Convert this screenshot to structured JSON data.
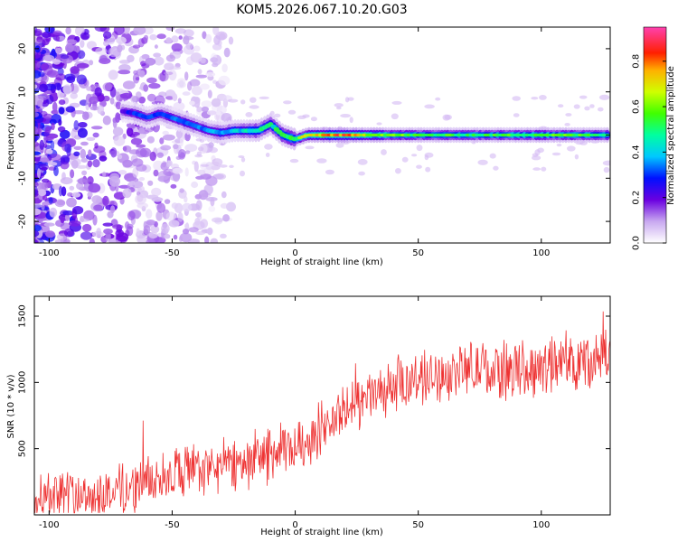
{
  "title": "KOM5.2026.067.10.20.G03",
  "chart_data": [
    {
      "type": "heatmap",
      "xlabel": "Height of straight line (km)",
      "ylabel": "Frequency (Hz)",
      "xlim": [
        -106,
        128
      ],
      "ylim": [
        -25,
        25
      ],
      "xticks": [
        -100,
        -50,
        0,
        50,
        100
      ],
      "xtick_labels": [
        "-100",
        "-50",
        "0",
        "50",
        "100"
      ],
      "yticks": [
        -20,
        -10,
        0,
        10,
        20
      ],
      "ytick_labels": [
        "-20",
        "-10",
        "0",
        "10",
        "20"
      ],
      "colorbar": {
        "label": "Normalized spectral amplitude",
        "range": [
          0,
          0.95
        ],
        "ticks": [
          0.0,
          0.2,
          0.4,
          0.6,
          0.8
        ],
        "tick_labels": [
          "0.0",
          "0.2",
          "0.4",
          "0.6",
          "0.8"
        ]
      },
      "signal_track": [
        {
          "x": -70,
          "f": 5.5,
          "amp": 0.25
        },
        {
          "x": -65,
          "f": 5.0,
          "amp": 0.3
        },
        {
          "x": -60,
          "f": 4.0,
          "amp": 0.3
        },
        {
          "x": -55,
          "f": 5.0,
          "amp": 0.3
        },
        {
          "x": -50,
          "f": 4.0,
          "amp": 0.35
        },
        {
          "x": -45,
          "f": 3.0,
          "amp": 0.35
        },
        {
          "x": -40,
          "f": 2.0,
          "amp": 0.35
        },
        {
          "x": -35,
          "f": 1.0,
          "amp": 0.35
        },
        {
          "x": -30,
          "f": 0.5,
          "amp": 0.4
        },
        {
          "x": -25,
          "f": 1.0,
          "amp": 0.4
        },
        {
          "x": -20,
          "f": 1.0,
          "amp": 0.45
        },
        {
          "x": -15,
          "f": 1.0,
          "amp": 0.5
        },
        {
          "x": -10,
          "f": 2.5,
          "amp": 0.5
        },
        {
          "x": -5,
          "f": 0.0,
          "amp": 0.55
        },
        {
          "x": 0,
          "f": -1.0,
          "amp": 0.55
        },
        {
          "x": 5,
          "f": 0.0,
          "amp": 0.7
        },
        {
          "x": 15,
          "f": 0.0,
          "amp": 0.85
        },
        {
          "x": 30,
          "f": 0.0,
          "amp": 0.7
        },
        {
          "x": 50,
          "f": 0.0,
          "amp": 0.55
        },
        {
          "x": 80,
          "f": 0.0,
          "amp": 0.55
        },
        {
          "x": 100,
          "f": 0.0,
          "amp": 0.6
        },
        {
          "x": 128,
          "f": 0.0,
          "amp": 0.55
        }
      ]
    },
    {
      "type": "line",
      "xlabel": "Height of straight line (km)",
      "ylabel": "SNR (10 * v/v)",
      "xlim": [
        -106,
        128
      ],
      "ylim": [
        0,
        1650
      ],
      "xticks": [
        -100,
        -50,
        0,
        50,
        100
      ],
      "xtick_labels": [
        "-100",
        "-50",
        "0",
        "50",
        "100"
      ],
      "yticks": [
        500,
        1000,
        1500
      ],
      "ytick_labels": [
        "500",
        "1000",
        "1500"
      ],
      "series": [
        {
          "name": "SNR",
          "color": "#ee3333",
          "trend": [
            {
              "x": -106,
              "y": 160
            },
            {
              "x": -90,
              "y": 160
            },
            {
              "x": -80,
              "y": 150
            },
            {
              "x": -70,
              "y": 190
            },
            {
              "x": -60,
              "y": 250
            },
            {
              "x": -50,
              "y": 320
            },
            {
              "x": -40,
              "y": 330
            },
            {
              "x": -30,
              "y": 360
            },
            {
              "x": -20,
              "y": 420
            },
            {
              "x": -10,
              "y": 460
            },
            {
              "x": 0,
              "y": 500
            },
            {
              "x": 10,
              "y": 640
            },
            {
              "x": 20,
              "y": 780
            },
            {
              "x": 30,
              "y": 890
            },
            {
              "x": 40,
              "y": 960
            },
            {
              "x": 50,
              "y": 1030
            },
            {
              "x": 60,
              "y": 1060
            },
            {
              "x": 70,
              "y": 1110
            },
            {
              "x": 80,
              "y": 1080
            },
            {
              "x": 90,
              "y": 1100
            },
            {
              "x": 100,
              "y": 1120
            },
            {
              "x": 110,
              "y": 1150
            },
            {
              "x": 120,
              "y": 1180
            },
            {
              "x": 128,
              "y": 1200
            }
          ],
          "noise_amplitude": 200,
          "points": 900
        }
      ]
    }
  ]
}
